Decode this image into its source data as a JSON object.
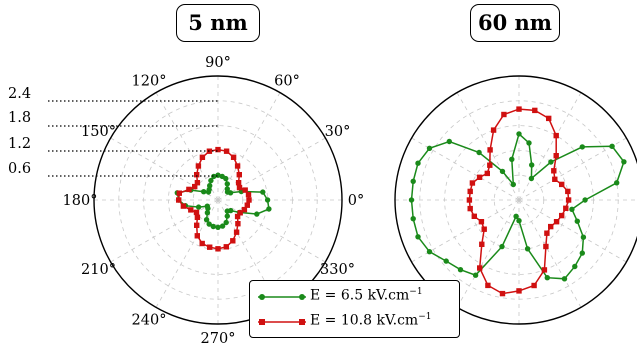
{
  "chart_data": [
    {
      "type": "polar-line",
      "title": "5 nm",
      "angle_ticks": [
        "0°",
        "30°",
        "60°",
        "90°",
        "120°",
        "150°",
        "180°",
        "210°",
        "240°",
        "270°",
        "330°"
      ],
      "radial_ticks": [
        "2.4",
        "1.8",
        "1.2",
        "0.6"
      ],
      "rlim": [
        0,
        3.0
      ],
      "grid": true,
      "series": [
        {
          "name": "E = 6.5 kV.cm−1",
          "color": "#1a8a1a",
          "marker": "circle",
          "theta_deg": [
            0,
            10,
            20,
            30,
            40,
            50,
            60,
            70,
            80,
            90,
            100,
            110,
            120,
            130,
            140,
            150,
            160,
            170,
            180,
            190,
            200,
            210,
            220,
            230,
            240,
            250,
            260,
            270,
            280,
            290,
            300,
            310,
            320,
            330,
            340,
            350
          ],
          "r": [
            1.2,
            1.1,
            0.6,
            0.35,
            0.3,
            0.35,
            0.45,
            0.55,
            0.58,
            0.6,
            0.58,
            0.5,
            0.4,
            0.33,
            0.3,
            0.4,
            0.7,
            1.0,
            0.95,
            0.8,
            0.5,
            0.3,
            0.32,
            0.4,
            0.55,
            0.62,
            0.65,
            0.66,
            0.64,
            0.58,
            0.45,
            0.35,
            0.4,
            0.6,
            1.0,
            1.25
          ]
        },
        {
          "name": "E = 10.8 kV.cm−1",
          "color": "#d01010",
          "marker": "square",
          "theta_deg": [
            0,
            10,
            20,
            30,
            40,
            50,
            60,
            70,
            80,
            90,
            100,
            110,
            120,
            130,
            140,
            150,
            160,
            170,
            180,
            190,
            200,
            210,
            220,
            230,
            240,
            250,
            260,
            270,
            280,
            290,
            300,
            310,
            320,
            330,
            340,
            350
          ],
          "r": [
            0.75,
            0.75,
            0.7,
            0.6,
            0.65,
            0.8,
            0.95,
            1.1,
            1.2,
            1.22,
            1.2,
            1.1,
            0.95,
            0.8,
            0.65,
            0.65,
            0.75,
            0.95,
            0.95,
            0.85,
            0.7,
            0.6,
            0.65,
            0.8,
            1.0,
            1.12,
            1.16,
            1.18,
            1.15,
            1.05,
            0.9,
            0.75,
            0.62,
            0.62,
            0.68,
            0.72
          ]
        }
      ]
    },
    {
      "type": "polar-line",
      "title": "60 nm",
      "rlim": [
        0,
        3.0
      ],
      "grid": true,
      "series": [
        {
          "name": "E = 6.5 kV.cm−1",
          "color": "#1a8a1a",
          "marker": "circle",
          "theta_deg": [
            0,
            10,
            20,
            30,
            40,
            50,
            60,
            70,
            80,
            90,
            100,
            110,
            120,
            130,
            140,
            150,
            160,
            170,
            180,
            190,
            200,
            210,
            220,
            230,
            240,
            250,
            260,
            270,
            280,
            290,
            300,
            310,
            320,
            330,
            340,
            350
          ],
          "r": [
            1.6,
            2.4,
            2.7,
            2.6,
            2.0,
            1.2,
            0.6,
            0.9,
            1.4,
            1.6,
            1.0,
            0.4,
            0.8,
            1.5,
            2.2,
            2.5,
            2.6,
            2.6,
            2.6,
            2.6,
            2.6,
            2.5,
            2.3,
            2.2,
            2.1,
            1.2,
            0.4,
            0.5,
            1.2,
            2.0,
            2.2,
            2.1,
            2.0,
            1.8,
            1.5,
            1.3
          ]
        },
        {
          "name": "E = 10.8 kV.cm−1",
          "color": "#d01010",
          "marker": "square",
          "theta_deg": [
            0,
            10,
            20,
            30,
            40,
            50,
            60,
            70,
            80,
            90,
            100,
            110,
            120,
            130,
            140,
            150,
            160,
            170,
            180,
            190,
            200,
            210,
            220,
            230,
            240,
            250,
            260,
            270,
            280,
            290,
            300,
            310,
            320,
            330,
            340,
            350
          ],
          "r": [
            1.2,
            1.2,
            1.1,
            1.0,
            1.1,
            1.4,
            1.8,
            2.1,
            2.2,
            2.2,
            2.1,
            1.8,
            1.4,
            1.1,
            1.0,
            1.1,
            1.2,
            1.2,
            1.2,
            1.2,
            1.15,
            1.05,
            1.1,
            1.4,
            1.9,
            2.2,
            2.3,
            2.2,
            2.1,
            1.8,
            1.3,
            1.05,
            1.0,
            1.05,
            1.1,
            1.15
          ]
        }
      ]
    }
  ],
  "titles": {
    "left": "5 nm",
    "right": "60 nm"
  },
  "legend": {
    "green_label": "E = 6.5 kV.cm",
    "red_label": "E = 10.8 kV.cm",
    "exponent": "−1"
  }
}
